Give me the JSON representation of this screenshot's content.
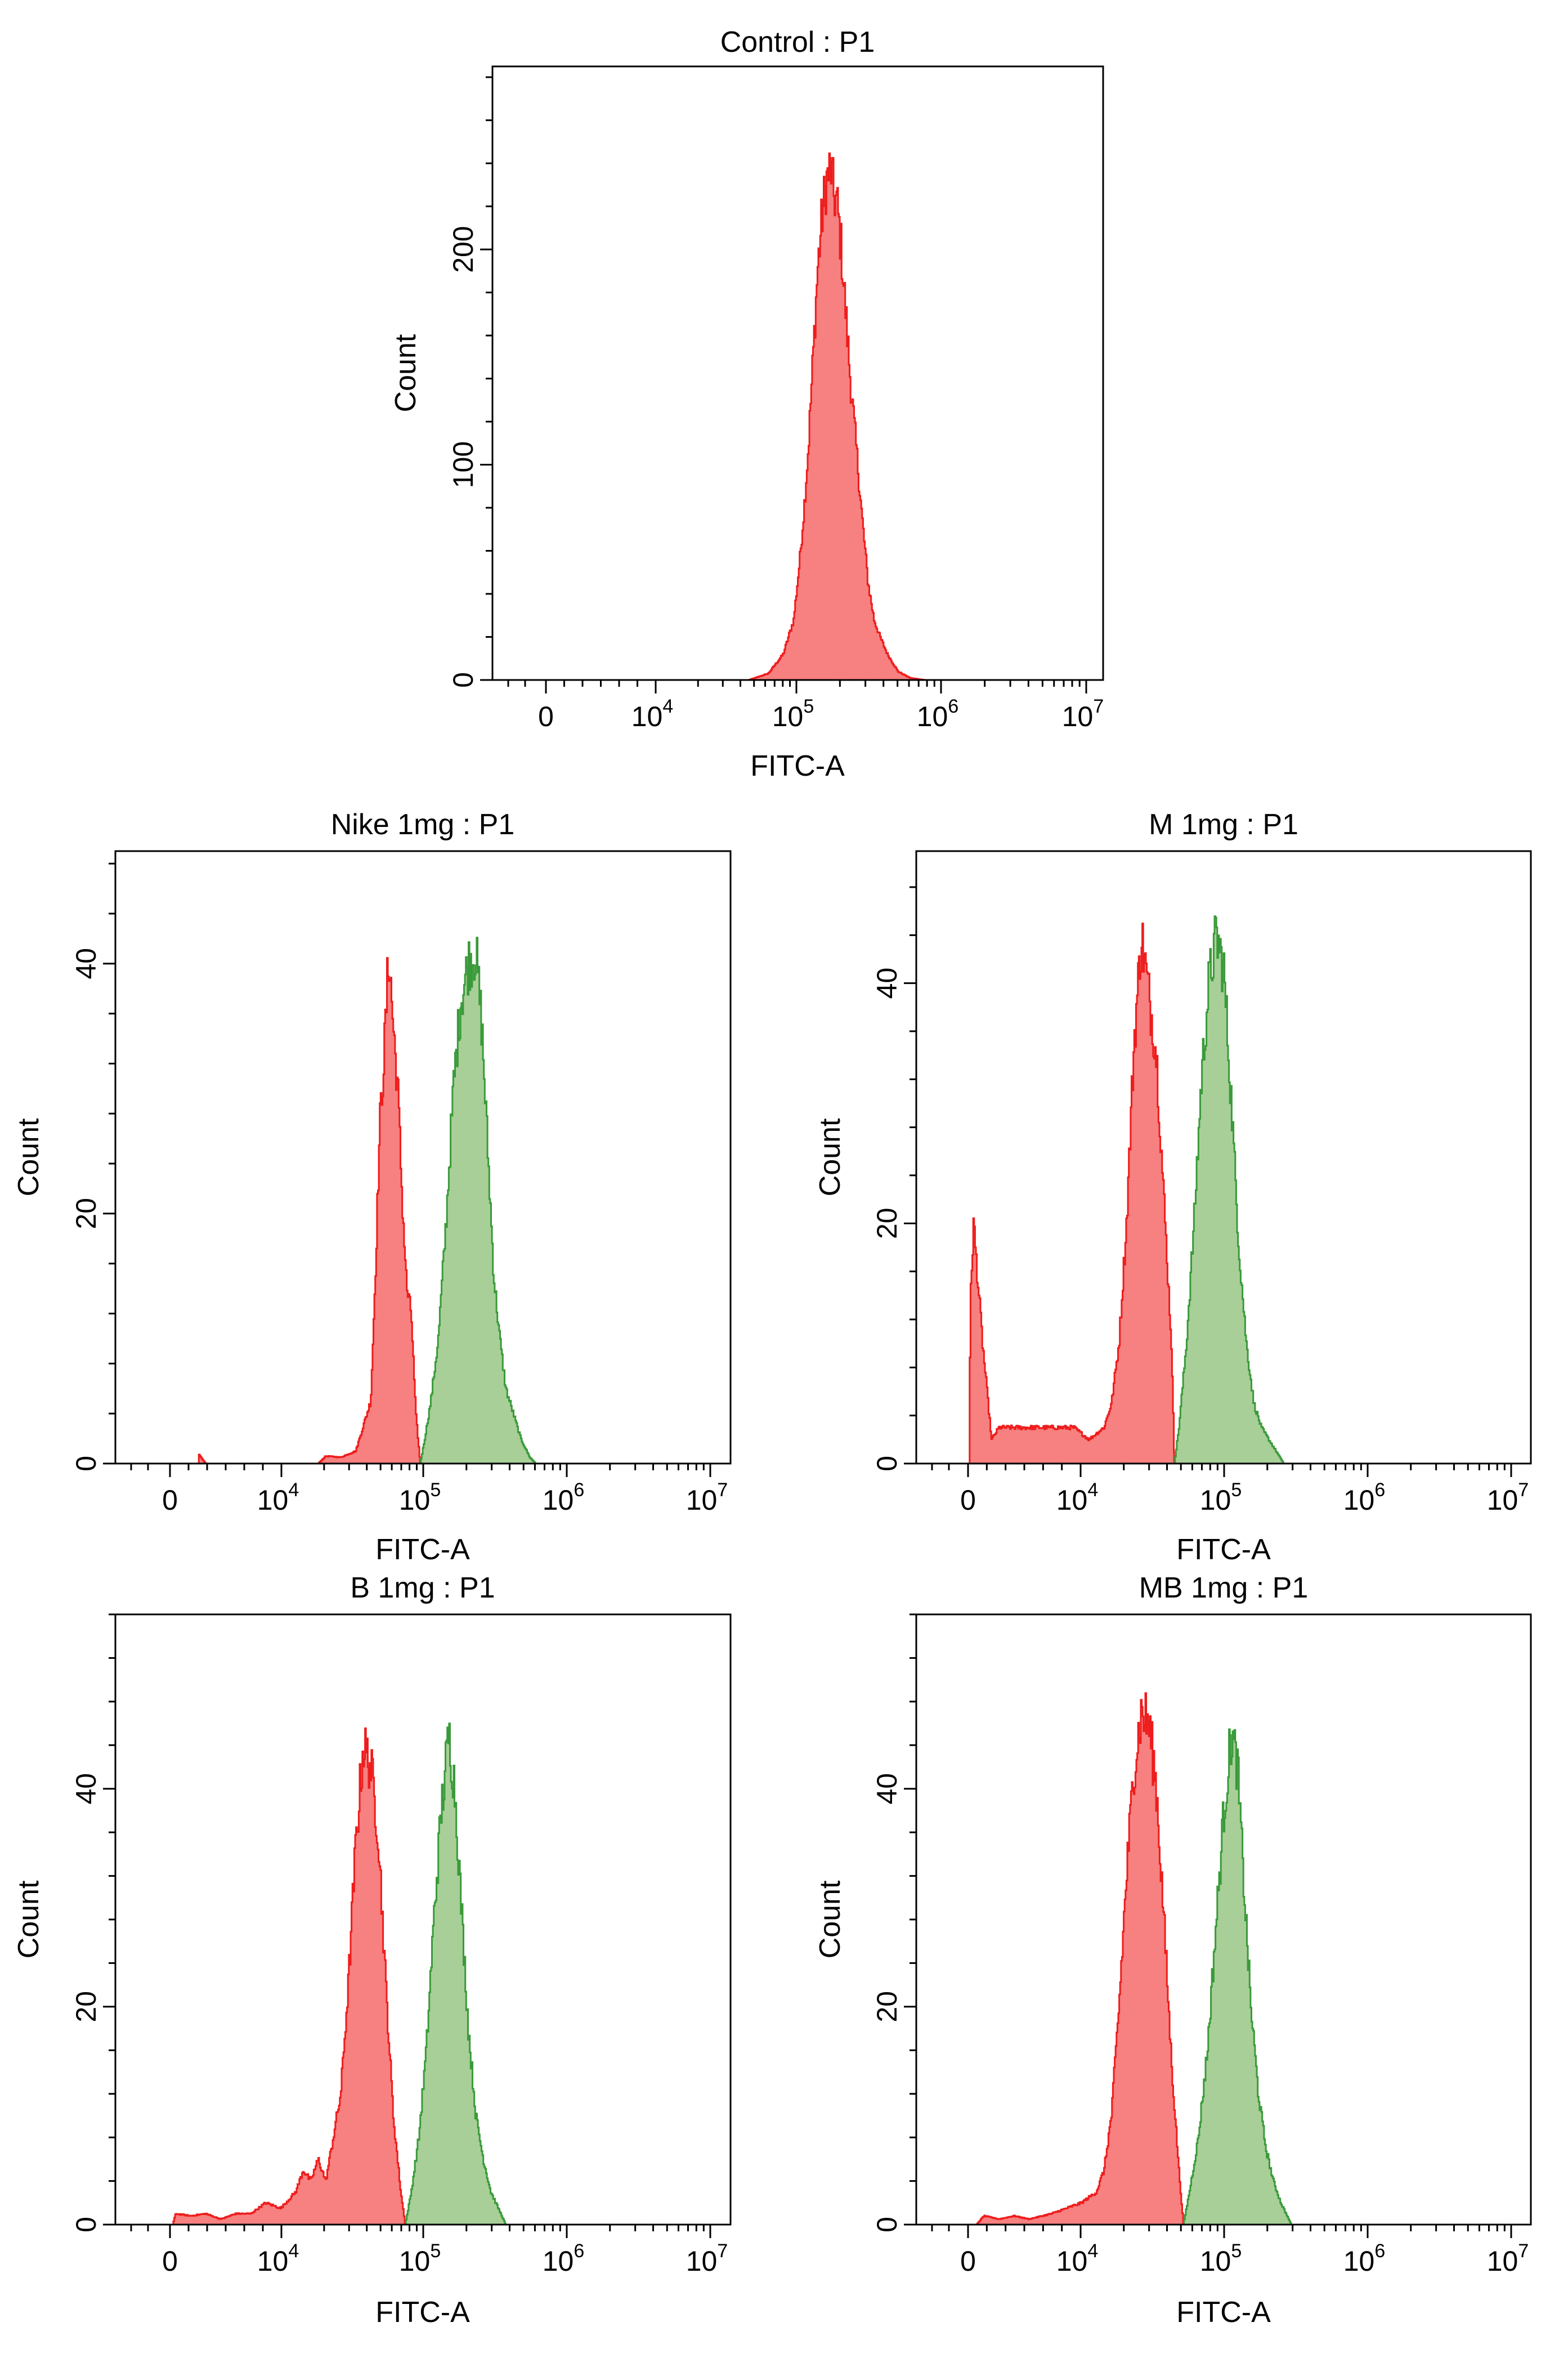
{
  "figure": {
    "background": "#ffffff"
  },
  "colors": {
    "red_fill": "#f78080",
    "red_line": "#ee1c1c",
    "green_fill": "#a8cf98",
    "green_line": "#3a9a3a"
  },
  "chart_data": [
    {
      "type": "histogram",
      "title": "Control : P1",
      "xlabel": "FITC-A",
      "ylabel": "Count",
      "x_scale": "biexponential (log10 FITC-A)",
      "xticks": [
        {
          "base": "0",
          "exp": ""
        },
        {
          "base": "10",
          "exp": "4"
        },
        {
          "base": "10",
          "exp": "5"
        },
        {
          "base": "10",
          "exp": "6"
        },
        {
          "base": "10",
          "exp": "7"
        }
      ],
      "xlim_log10": [
        3.0,
        7.1
      ],
      "yticks": [
        "0",
        "100",
        "200"
      ],
      "ytick_values": [
        0,
        100,
        200
      ],
      "ylim": [
        0,
        285
      ],
      "series": [
        {
          "name": "P1",
          "color": "red",
          "points": [
            [
              4.72,
              0
            ],
            [
              4.85,
              3
            ],
            [
              4.95,
              12
            ],
            [
              5.02,
              28
            ],
            [
              5.06,
              55
            ],
            [
              5.09,
              80
            ],
            [
              5.12,
              110
            ],
            [
              5.15,
              150
            ],
            [
              5.18,
              190
            ],
            [
              5.21,
              215
            ],
            [
              5.24,
              232
            ],
            [
              5.27,
              238
            ],
            [
              5.29,
              225
            ],
            [
              5.31,
              222
            ],
            [
              5.34,
              200
            ],
            [
              5.37,
              170
            ],
            [
              5.4,
              140
            ],
            [
              5.44,
              108
            ],
            [
              5.48,
              75
            ],
            [
              5.52,
              45
            ],
            [
              5.56,
              28
            ],
            [
              5.6,
              20
            ],
            [
              5.65,
              12
            ],
            [
              5.72,
              4
            ],
            [
              5.8,
              1
            ],
            [
              5.9,
              0
            ]
          ]
        }
      ]
    },
    {
      "type": "histogram",
      "title": "Nike 1mg : P1",
      "xlabel": "FITC-A",
      "ylabel": "Count",
      "x_scale": "biexponential (log10 FITC-A)",
      "xticks": [
        {
          "base": "0",
          "exp": ""
        },
        {
          "base": "10",
          "exp": "4"
        },
        {
          "base": "10",
          "exp": "5"
        },
        {
          "base": "10",
          "exp": "6"
        },
        {
          "base": "10",
          "exp": "7"
        }
      ],
      "xlim_log10": [
        3.0,
        7.1
      ],
      "yticks": [
        "0",
        "20",
        "40"
      ],
      "ytick_values": [
        0,
        20,
        40
      ],
      "ylim": [
        0,
        49
      ],
      "series": [
        {
          "name": "Nike 1mg",
          "color": "red",
          "points": [
            [
              3.55,
              0
            ],
            [
              3.55,
              0.8
            ],
            [
              3.6,
              0
            ],
            [
              4.35,
              0
            ],
            [
              4.4,
              0.6
            ],
            [
              4.5,
              0.5
            ],
            [
              4.6,
              1
            ],
            [
              4.65,
              3
            ],
            [
              4.7,
              5
            ],
            [
              4.73,
              15
            ],
            [
              4.76,
              27
            ],
            [
              4.79,
              33
            ],
            [
              4.82,
              41
            ],
            [
              4.85,
              35
            ],
            [
              4.88,
              30
            ],
            [
              4.91,
              21
            ],
            [
              4.94,
              14
            ],
            [
              4.97,
              12
            ],
            [
              5.0,
              4
            ],
            [
              5.03,
              0
            ]
          ]
        },
        {
          "name": "Nike 1mg",
          "color": "green",
          "points": [
            [
              5.03,
              0
            ],
            [
              5.06,
              2
            ],
            [
              5.1,
              5
            ],
            [
              5.15,
              10
            ],
            [
              5.2,
              19
            ],
            [
              5.25,
              30
            ],
            [
              5.3,
              37
            ],
            [
              5.35,
              40
            ],
            [
              5.4,
              41
            ],
            [
              5.44,
              35
            ],
            [
              5.48,
              25
            ],
            [
              5.52,
              15
            ],
            [
              5.56,
              10
            ],
            [
              5.6,
              6
            ],
            [
              5.65,
              4
            ],
            [
              5.7,
              2
            ],
            [
              5.76,
              0.5
            ],
            [
              5.8,
              0
            ]
          ]
        }
      ]
    },
    {
      "type": "histogram",
      "title": "M 1mg : P1",
      "xlabel": "FITC-A",
      "ylabel": "Count",
      "x_scale": "biexponential (log10 FITC-A)",
      "xticks": [
        {
          "base": "0",
          "exp": ""
        },
        {
          "base": "10",
          "exp": "4"
        },
        {
          "base": "10",
          "exp": "5"
        },
        {
          "base": "10",
          "exp": "6"
        },
        {
          "base": "10",
          "exp": "7"
        }
      ],
      "xlim_log10": [
        3.0,
        7.1
      ],
      "yticks": [
        "0",
        "20",
        "40"
      ],
      "ytick_values": [
        0,
        20,
        40
      ],
      "ylim": [
        0,
        51
      ],
      "series": [
        {
          "name": "M 1mg",
          "color": "red",
          "points": [
            [
              3.35,
              0
            ],
            [
              3.36,
              14
            ],
            [
              3.38,
              20
            ],
            [
              3.41,
              15
            ],
            [
              3.44,
              10
            ],
            [
              3.47,
              6
            ],
            [
              3.5,
              2
            ],
            [
              3.55,
              3
            ],
            [
              3.65,
              3
            ],
            [
              3.75,
              3
            ],
            [
              3.85,
              3
            ],
            [
              3.95,
              3
            ],
            [
              4.05,
              3
            ],
            [
              4.15,
              2
            ],
            [
              4.25,
              3
            ],
            [
              4.3,
              5
            ],
            [
              4.35,
              10
            ],
            [
              4.4,
              20
            ],
            [
              4.45,
              35
            ],
            [
              4.5,
              44
            ],
            [
              4.55,
              39
            ],
            [
              4.6,
              34
            ],
            [
              4.65,
              22
            ],
            [
              4.7,
              10
            ],
            [
              4.72,
              0
            ]
          ]
        },
        {
          "name": "M 1mg",
          "color": "green",
          "points": [
            [
              4.72,
              0
            ],
            [
              4.75,
              3
            ],
            [
              4.8,
              10
            ],
            [
              4.85,
              20
            ],
            [
              4.9,
              32
            ],
            [
              4.95,
              40
            ],
            [
              5.0,
              44
            ],
            [
              5.05,
              41
            ],
            [
              5.1,
              30
            ],
            [
              5.15,
              18
            ],
            [
              5.2,
              10
            ],
            [
              5.25,
              5
            ],
            [
              5.3,
              3
            ],
            [
              5.35,
              2
            ],
            [
              5.4,
              1
            ],
            [
              5.45,
              0
            ]
          ]
        }
      ]
    },
    {
      "type": "histogram",
      "title": "B 1mg : P1",
      "xlabel": "FITC-A",
      "ylabel": "Count",
      "x_scale": "biexponential (log10 FITC-A)",
      "xticks": [
        {
          "base": "0",
          "exp": ""
        },
        {
          "base": "10",
          "exp": "4"
        },
        {
          "base": "10",
          "exp": "5"
        },
        {
          "base": "10",
          "exp": "6"
        },
        {
          "base": "10",
          "exp": "7"
        }
      ],
      "xlim_log10": [
        3.0,
        7.1
      ],
      "yticks": [
        "0",
        "20",
        "40"
      ],
      "ytick_values": [
        0,
        20,
        40
      ],
      "ylim": [
        0,
        56
      ],
      "series": [
        {
          "name": "B 1mg",
          "color": "red",
          "points": [
            [
              3.38,
              0
            ],
            [
              3.4,
              1
            ],
            [
              3.5,
              0.8
            ],
            [
              3.6,
              1
            ],
            [
              3.7,
              0.5
            ],
            [
              3.8,
              1
            ],
            [
              3.9,
              1
            ],
            [
              4.0,
              2
            ],
            [
              4.1,
              1.5
            ],
            [
              4.2,
              3
            ],
            [
              4.25,
              5
            ],
            [
              4.3,
              4
            ],
            [
              4.35,
              6
            ],
            [
              4.4,
              4
            ],
            [
              4.45,
              8
            ],
            [
              4.5,
              12
            ],
            [
              4.55,
              22
            ],
            [
              4.6,
              35
            ],
            [
              4.65,
              44
            ],
            [
              4.7,
              42
            ],
            [
              4.75,
              36
            ],
            [
              4.8,
              22
            ],
            [
              4.85,
              10
            ],
            [
              4.9,
              3
            ],
            [
              4.93,
              0
            ]
          ]
        },
        {
          "name": "B 1mg",
          "color": "green",
          "points": [
            [
              4.93,
              0
            ],
            [
              4.97,
              3
            ],
            [
              5.02,
              8
            ],
            [
              5.07,
              16
            ],
            [
              5.12,
              28
            ],
            [
              5.17,
              38
            ],
            [
              5.22,
              45
            ],
            [
              5.26,
              40
            ],
            [
              5.3,
              30
            ],
            [
              5.35,
              18
            ],
            [
              5.4,
              10
            ],
            [
              5.45,
              6
            ],
            [
              5.5,
              3
            ],
            [
              5.55,
              1.5
            ],
            [
              5.6,
              0
            ]
          ]
        }
      ]
    },
    {
      "type": "histogram",
      "title": "MB 1mg : P1",
      "xlabel": "FITC-A",
      "ylabel": "Count",
      "x_scale": "biexponential (log10 FITC-A)",
      "xticks": [
        {
          "base": "0",
          "exp": ""
        },
        {
          "base": "10",
          "exp": "4"
        },
        {
          "base": "10",
          "exp": "5"
        },
        {
          "base": "10",
          "exp": "6"
        },
        {
          "base": "10",
          "exp": "7"
        }
      ],
      "xlim_log10": [
        3.0,
        7.1
      ],
      "yticks": [
        "0",
        "20",
        "40"
      ],
      "ytick_values": [
        0,
        20,
        40
      ],
      "ylim": [
        0,
        56
      ],
      "series": [
        {
          "name": "MB 1mg",
          "color": "red",
          "points": [
            [
              3.4,
              0
            ],
            [
              3.45,
              0.8
            ],
            [
              3.55,
              0.5
            ],
            [
              3.65,
              0.8
            ],
            [
              3.75,
              0.5
            ],
            [
              3.9,
              1
            ],
            [
              4.0,
              1.5
            ],
            [
              4.1,
              2
            ],
            [
              4.2,
              3
            ],
            [
              4.25,
              5
            ],
            [
              4.3,
              10
            ],
            [
              4.35,
              20
            ],
            [
              4.4,
              32
            ],
            [
              4.45,
              42
            ],
            [
              4.5,
              47
            ],
            [
              4.55,
              46
            ],
            [
              4.6,
              40
            ],
            [
              4.65,
              28
            ],
            [
              4.7,
              15
            ],
            [
              4.75,
              5
            ],
            [
              4.78,
              0
            ]
          ]
        },
        {
          "name": "MB 1mg",
          "color": "green",
          "points": [
            [
              4.78,
              0
            ],
            [
              4.82,
              3
            ],
            [
              4.88,
              8
            ],
            [
              4.94,
              16
            ],
            [
              5.0,
              28
            ],
            [
              5.05,
              38
            ],
            [
              5.1,
              45
            ],
            [
              5.14,
              42
            ],
            [
              5.18,
              32
            ],
            [
              5.23,
              20
            ],
            [
              5.28,
              12
            ],
            [
              5.33,
              7
            ],
            [
              5.38,
              4
            ],
            [
              5.43,
              2
            ],
            [
              5.5,
              0
            ]
          ]
        }
      ]
    }
  ]
}
